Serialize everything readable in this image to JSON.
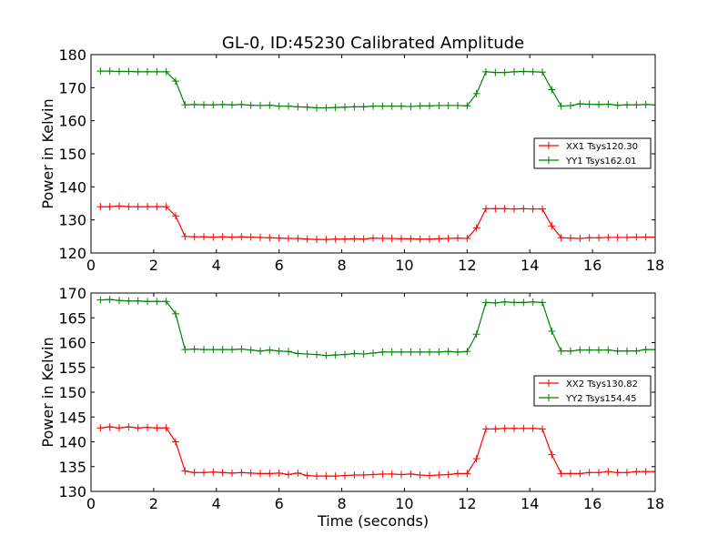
{
  "title": "GL-0, ID:45230 Calibrated Amplitude",
  "chart_data": [
    {
      "type": "line",
      "ylabel": "Power in Kelvin",
      "xlabel": "",
      "xlim": [
        0,
        18
      ],
      "ylim": [
        120,
        180
      ],
      "x_ticks": [
        0,
        2,
        4,
        6,
        8,
        10,
        12,
        14,
        16,
        18
      ],
      "y_ticks": [
        120,
        130,
        140,
        150,
        160,
        170,
        180
      ],
      "legend_position": "right",
      "x": [
        0.3,
        0.6,
        0.9,
        1.2,
        1.5,
        1.8,
        2.1,
        2.4,
        2.7,
        3.0,
        3.3,
        3.6,
        3.9,
        4.2,
        4.5,
        4.8,
        5.1,
        5.4,
        5.7,
        6.0,
        6.3,
        6.6,
        6.9,
        7.2,
        7.5,
        7.8,
        8.1,
        8.4,
        8.7,
        9.0,
        9.3,
        9.6,
        9.9,
        10.2,
        10.5,
        10.8,
        11.1,
        11.4,
        11.7,
        12.0,
        12.3,
        12.6,
        12.9,
        13.2,
        13.5,
        13.8,
        14.1,
        14.4,
        14.7,
        15.0,
        15.3,
        15.6,
        15.9,
        16.2,
        16.5,
        16.8,
        17.1,
        17.4,
        17.7,
        18.0
      ],
      "series": [
        {
          "name": "XX1 Tsys120.30",
          "color": "#ff0000",
          "values": [
            134,
            134,
            134.2,
            134,
            134,
            134,
            134,
            134,
            131.2,
            125,
            124.9,
            124.9,
            124.8,
            124.9,
            124.8,
            124.9,
            124.8,
            124.7,
            124.6,
            124.5,
            124.4,
            124.4,
            124.2,
            124.1,
            124.1,
            124.2,
            124.2,
            124.3,
            124.2,
            124.5,
            124.4,
            124.4,
            124.3,
            124.3,
            124.2,
            124.2,
            124.3,
            124.4,
            124.5,
            124.4,
            127.6,
            133.4,
            133.4,
            133.4,
            133.3,
            133.4,
            133.3,
            133.3,
            128.2,
            124.6,
            124.5,
            124.4,
            124.6,
            124.6,
            124.7,
            124.7,
            124.7,
            124.8,
            124.8,
            124.8
          ]
        },
        {
          "name": "YY1 Tsys162.01",
          "color": "#008000",
          "values": [
            175,
            175,
            174.9,
            174.9,
            174.8,
            174.8,
            174.8,
            174.8,
            172,
            164.8,
            164.9,
            164.8,
            164.8,
            164.9,
            164.8,
            164.9,
            164.7,
            164.6,
            164.7,
            164.4,
            164.4,
            164.2,
            164.1,
            163.9,
            163.9,
            164,
            164.1,
            164.2,
            164.2,
            164.4,
            164.4,
            164.4,
            164.4,
            164.3,
            164.5,
            164.5,
            164.6,
            164.6,
            164.6,
            164.5,
            168.2,
            174.8,
            174.6,
            174.6,
            174.8,
            174.9,
            174.8,
            174.7,
            169.4,
            164.4,
            164.6,
            165.1,
            165,
            164.9,
            165,
            164.7,
            164.8,
            164.8,
            164.9,
            164.8
          ]
        }
      ]
    },
    {
      "type": "line",
      "ylabel": "Power in Kelvin",
      "xlabel": "Time (seconds)",
      "xlim": [
        0,
        18
      ],
      "ylim": [
        130,
        170
      ],
      "x_ticks": [
        0,
        2,
        4,
        6,
        8,
        10,
        12,
        14,
        16,
        18
      ],
      "y_ticks": [
        130,
        135,
        140,
        145,
        150,
        155,
        160,
        165,
        170
      ],
      "legend_position": "right",
      "x": [
        0.3,
        0.6,
        0.9,
        1.2,
        1.5,
        1.8,
        2.1,
        2.4,
        2.7,
        3.0,
        3.3,
        3.6,
        3.9,
        4.2,
        4.5,
        4.8,
        5.1,
        5.4,
        5.7,
        6.0,
        6.3,
        6.6,
        6.9,
        7.2,
        7.5,
        7.8,
        8.1,
        8.4,
        8.7,
        9.0,
        9.3,
        9.6,
        9.9,
        10.2,
        10.5,
        10.8,
        11.1,
        11.4,
        11.7,
        12.0,
        12.3,
        12.6,
        12.9,
        13.2,
        13.5,
        13.8,
        14.1,
        14.4,
        14.7,
        15.0,
        15.3,
        15.6,
        15.9,
        16.2,
        16.5,
        16.8,
        17.1,
        17.4,
        17.7,
        18.0
      ],
      "series": [
        {
          "name": "XX2 Tsys130.82",
          "color": "#ff0000",
          "values": [
            142.8,
            143,
            142.8,
            143,
            142.8,
            142.9,
            142.8,
            142.8,
            140,
            134.1,
            133.8,
            133.8,
            133.9,
            133.8,
            133.7,
            133.8,
            133.7,
            133.6,
            133.6,
            133.7,
            133.4,
            133.7,
            133.2,
            133.1,
            133.1,
            133.1,
            133.2,
            133.3,
            133.3,
            133.4,
            133.5,
            133.5,
            133.4,
            133.5,
            133.3,
            133.2,
            133.3,
            133.4,
            133.6,
            133.6,
            136.6,
            142.6,
            142.6,
            142.7,
            142.7,
            142.7,
            142.7,
            142.6,
            137.4,
            133.6,
            133.6,
            133.6,
            133.8,
            133.8,
            134,
            133.8,
            133.8,
            134,
            134,
            134
          ]
        },
        {
          "name": "YY2 Tsys154.45",
          "color": "#008000",
          "values": [
            168.6,
            168.7,
            168.5,
            168.4,
            168.4,
            168.3,
            168.3,
            168.3,
            165.8,
            158.6,
            158.7,
            158.6,
            158.6,
            158.6,
            158.6,
            158.7,
            158.5,
            158.3,
            158.5,
            158.3,
            158.2,
            157.8,
            157.7,
            157.6,
            157.4,
            157.5,
            157.6,
            157.8,
            157.7,
            157.9,
            158.1,
            158.1,
            158.1,
            158.1,
            158.1,
            158.1,
            158.1,
            158.2,
            158.1,
            158.2,
            161.7,
            168.1,
            168,
            168.2,
            168.1,
            168.1,
            168.2,
            168.1,
            162.3,
            158.3,
            158.3,
            158.5,
            158.5,
            158.5,
            158.5,
            158.3,
            158.3,
            158.3,
            158.6,
            158.6
          ]
        }
      ]
    }
  ]
}
